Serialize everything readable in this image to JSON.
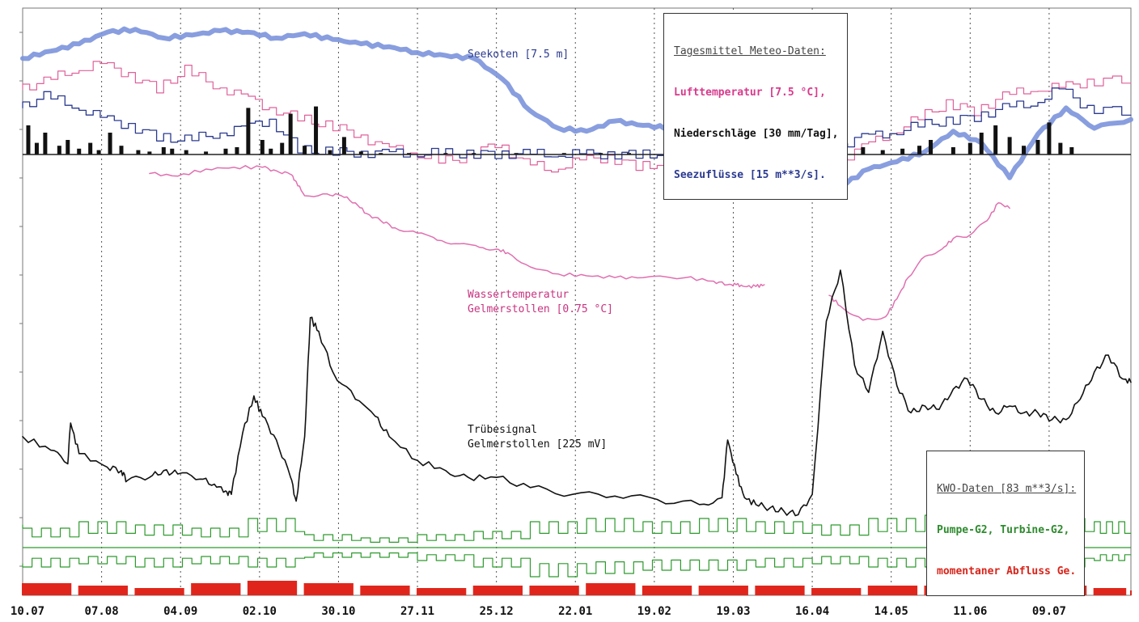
{
  "colors": {
    "air_temp": "#e0609a",
    "precip": "#111111",
    "inflow": "#2b3a8f",
    "lake_level": "#7b93dc",
    "water_temp": "#e070b0",
    "turbidity": "#111111",
    "pump_turbine": "#2e9a2e",
    "discharge": "#e0261c",
    "grid": "#555555"
  },
  "labels": {
    "seekoten": "Seekoten [7.5 m]",
    "wassertemp_1": "Wassertemperatur",
    "wassertemp_2": "Gelmerstollen [0.75 °C]",
    "truebe_1": "Trübesignal",
    "truebe_2": "Gelmerstollen [225 mV]"
  },
  "meteo_legend": {
    "title": "Tagesmittel Meteo-Daten:",
    "line1": "Lufttemperatur [7.5 °C],",
    "line2": "Niederschläge [30 mm/Tag],",
    "line3": "Seezuflüsse [15 m**3/s]."
  },
  "kwo_legend": {
    "title": "KWO-Daten [83 m**3/s]:",
    "line1": "Pumpe-G2, Turbine-G2,",
    "line2": "momentaner Abfluss Ge."
  },
  "chart_data": {
    "type": "line",
    "x_tick_labels": [
      "10.07",
      "07.08",
      "04.09",
      "02.10",
      "30.10",
      "27.11",
      "25.12",
      "22.01",
      "19.02",
      "19.03",
      "16.04",
      "14.05",
      "11.06",
      "09.07"
    ],
    "x_tick_days": [
      0,
      28,
      56,
      84,
      112,
      140,
      168,
      196,
      224,
      252,
      280,
      308,
      336,
      364
    ],
    "x_range_days": [
      0,
      393
    ],
    "grid": "vertical dotted at ticks",
    "series": [
      {
        "name": "Seekoten",
        "unit": "m",
        "scale": "7.5 m per division",
        "x": [
          0,
          10,
          20,
          30,
          40,
          50,
          60,
          70,
          80,
          90,
          100,
          110,
          120,
          130,
          140,
          150,
          160,
          170,
          180,
          190,
          200,
          210,
          220,
          230,
          240,
          250,
          260,
          270,
          280,
          290,
          300,
          310,
          320,
          330,
          340,
          350,
          360,
          370,
          380,
          393
        ],
        "y": [
          6.6,
          7.1,
          7.6,
          8.4,
          8.6,
          8.0,
          8.2,
          8.5,
          8.4,
          8.0,
          8.3,
          7.9,
          7.6,
          7.4,
          7.0,
          6.8,
          6.6,
          5.2,
          3.0,
          1.8,
          1.6,
          2.3,
          2.0,
          1.8,
          0.3,
          -0.8,
          -1.2,
          -0.5,
          -0.8,
          -2.2,
          -1.0,
          -0.5,
          0.2,
          1.6,
          0.8,
          -1.6,
          1.4,
          3.2,
          1.8,
          2.4
        ]
      },
      {
        "name": "Lufttemperatur",
        "unit": "°C",
        "scale": "7.5 °C per division",
        "x": [
          0,
          10,
          20,
          30,
          40,
          50,
          60,
          70,
          80,
          90,
          100,
          110,
          120,
          130,
          140,
          150,
          160,
          170,
          180,
          190,
          200,
          210,
          220,
          230,
          240,
          250,
          260,
          270,
          280,
          290,
          300,
          310,
          320,
          330,
          340,
          350,
          360,
          370,
          380,
          393
        ],
        "y": [
          4.5,
          5.0,
          5.8,
          6.2,
          5.5,
          4.5,
          5.8,
          4.8,
          4.0,
          3.2,
          2.5,
          2.0,
          1.5,
          0.5,
          0.2,
          -0.5,
          -0.2,
          0.8,
          -0.6,
          -1.0,
          -0.4,
          -0.2,
          -0.8,
          -0.6,
          -0.4,
          -0.6,
          -0.5,
          -0.4,
          -0.2,
          -0.6,
          0.5,
          1.5,
          2.5,
          3.5,
          3.0,
          4.0,
          4.5,
          4.6,
          5.0,
          5.2
        ]
      },
      {
        "name": "Seezuflüsse",
        "unit": "m**3/s",
        "scale": "15 m**3/s per division",
        "x": [
          0,
          10,
          20,
          30,
          40,
          50,
          60,
          70,
          80,
          90,
          100,
          110,
          120,
          130,
          140,
          150,
          160,
          170,
          180,
          190,
          200,
          210,
          220,
          230,
          240,
          250,
          260,
          270,
          280,
          290,
          300,
          310,
          320,
          330,
          340,
          350,
          360,
          370,
          380,
          393
        ],
        "y": [
          3.2,
          4.0,
          3.4,
          2.5,
          2.0,
          1.2,
          1.0,
          1.4,
          1.8,
          2.4,
          0.3,
          0.2,
          0.15,
          0.1,
          0.1,
          0.08,
          0.05,
          0.05,
          0.04,
          0.03,
          0.03,
          0.03,
          0.03,
          0.03,
          0.03,
          0.03,
          0.05,
          0.08,
          0.1,
          0.5,
          1.2,
          1.5,
          2.0,
          2.3,
          2.6,
          3.2,
          3.5,
          4.5,
          3.2,
          3.0
        ]
      },
      {
        "name": "Niederschläge",
        "unit": "mm/Tag",
        "scale": "30 mm/Tag per division",
        "type": "bar",
        "x": [
          2,
          5,
          8,
          13,
          16,
          20,
          24,
          27,
          31,
          35,
          41,
          45,
          50,
          53,
          58,
          65,
          72,
          76,
          80,
          85,
          88,
          92,
          95,
          100,
          104,
          109,
          114,
          120,
          127,
          137,
          150,
          160,
          175,
          192,
          205,
          215,
          230,
          240,
          250,
          255,
          268,
          280,
          290,
          298,
          305,
          312,
          318,
          322,
          330,
          336,
          340,
          345,
          350,
          355,
          360,
          364,
          368,
          372
        ],
        "y": [
          2.0,
          0.8,
          1.5,
          0.6,
          1.0,
          0.4,
          0.8,
          0.3,
          1.5,
          0.6,
          0.3,
          0.2,
          0.5,
          0.4,
          0.3,
          0.2,
          0.4,
          0.5,
          3.2,
          1.0,
          0.4,
          0.8,
          2.8,
          0.6,
          3.3,
          0.3,
          1.2,
          0.2,
          0.1,
          0.1,
          0.1,
          0.1,
          0.1,
          0.1,
          0.1,
          0.1,
          0.1,
          0.1,
          0.2,
          0.4,
          0.1,
          0.2,
          0.3,
          0.5,
          0.3,
          0.4,
          0.6,
          1.0,
          0.5,
          0.8,
          1.5,
          2.0,
          1.2,
          0.6,
          1.0,
          2.2,
          0.8,
          0.5
        ]
      },
      {
        "name": "Wassertemperatur Gelmerstollen",
        "unit": "°C",
        "scale": "0.75 °C per division",
        "x": [
          45,
          55,
          65,
          75,
          85,
          90,
          95,
          97,
          100,
          108,
          113,
          118,
          122,
          127,
          132,
          140,
          147,
          155,
          162,
          168,
          172,
          180,
          190,
          200,
          210,
          220,
          235,
          245,
          250,
          253,
          256,
          260,
          263,
          270,
          275,
          280,
          286,
          290,
          298,
          306,
          310,
          314,
          320,
          326,
          330,
          336,
          342,
          346,
          350
        ],
        "y": [
          5.25,
          5.1,
          5.5,
          5.6,
          5.6,
          5.4,
          5.2,
          4.8,
          4.0,
          4.1,
          4.0,
          3.6,
          3.0,
          2.6,
          2.2,
          1.9,
          1.5,
          1.3,
          1.1,
          1.0,
          0.8,
          0.0,
          -0.4,
          -0.5,
          -0.6,
          -0.6,
          -0.6,
          -0.8,
          -1.0,
          -1.0,
          -1.1,
          -1.1,
          -1.0,
          null,
          null,
          null,
          -1.6,
          -2.2,
          -3.0,
          -2.8,
          -1.8,
          -0.6,
          0.6,
          1.0,
          1.6,
          1.8,
          2.6,
          3.6,
          3.3
        ]
      },
      {
        "name": "Trübesignal Gelmerstollen",
        "unit": "mV",
        "scale": "225 mV per division",
        "x": [
          0,
          10,
          16,
          17,
          20,
          30,
          35,
          37,
          45,
          50,
          55,
          63,
          68,
          72,
          74,
          78,
          82,
          85,
          90,
          95,
          97,
          100,
          102,
          105,
          110,
          118,
          125,
          130,
          140,
          150,
          158,
          168,
          180,
          195,
          210,
          225,
          240,
          248,
          250,
          253,
          256,
          260,
          265,
          270,
          275,
          280,
          285,
          290,
          295,
          300,
          305,
          310,
          315,
          320,
          325,
          330,
          335,
          340,
          345,
          350,
          355,
          360,
          365,
          370,
          375,
          380,
          385,
          390,
          393
        ],
        "y": [
          -1.9,
          -2.3,
          -2.7,
          -1.5,
          -2.4,
          -2.8,
          -2.9,
          -3.2,
          -3.1,
          -2.9,
          -3.0,
          -3.15,
          -3.3,
          -3.5,
          -3.6,
          -1.8,
          -0.7,
          -1.3,
          -2.0,
          -3.1,
          -3.8,
          -1.9,
          1.6,
          1.2,
          0.0,
          -0.8,
          -1.3,
          -1.9,
          -2.6,
          -2.9,
          -3.1,
          -3.1,
          -3.4,
          -3.6,
          -3.65,
          -3.75,
          -3.9,
          -3.7,
          -2.0,
          -3.0,
          -3.7,
          -3.9,
          -4.0,
          -4.1,
          -4.2,
          -3.6,
          1.5,
          3.0,
          0.2,
          -0.6,
          1.2,
          -0.4,
          -1.2,
          -1.0,
          -1.1,
          -0.5,
          -0.2,
          -0.8,
          -1.2,
          -1.0,
          -1.2,
          -1.2,
          -1.4,
          -1.4,
          -0.8,
          0.0,
          0.5,
          -0.2,
          -0.3
        ]
      },
      {
        "name": "Pumpe-G2",
        "unit": "m**3/s",
        "scale": "83 m**3/s per division",
        "x": [
          0,
          20,
          40,
          60,
          80,
          100,
          120,
          140,
          160,
          180,
          200,
          220,
          240,
          260,
          280,
          300,
          320,
          340,
          360,
          380,
          393
        ],
        "y": [
          0.7,
          0.6,
          0.8,
          0.7,
          0.6,
          0.9,
          0.4,
          0.3,
          0.4,
          0.5,
          0.8,
          0.9,
          0.8,
          0.9,
          0.8,
          0.7,
          0.9,
          1.0,
          0.8,
          0.9,
          0.8
        ]
      },
      {
        "name": "Turbine-G2",
        "unit": "m**3/s",
        "scale": "83 m**3/s per division",
        "x": [
          0,
          20,
          40,
          60,
          80,
          100,
          120,
          140,
          160,
          180,
          200,
          220,
          240,
          260,
          280,
          300,
          320,
          340,
          360,
          380,
          393
        ],
        "y": [
          -0.5,
          -0.6,
          -0.5,
          -0.6,
          -0.5,
          -0.6,
          -0.3,
          -0.3,
          -0.4,
          -0.6,
          -0.9,
          -0.8,
          -0.7,
          -0.7,
          -0.6,
          -0.5,
          -0.6,
          -0.6,
          -0.5,
          -0.6,
          -0.4
        ]
      },
      {
        "name": "momentaner Abfluss Ge.",
        "unit": "m**3/s",
        "scale": "83 m**3/s per division",
        "type": "bar",
        "x": [
          0,
          20,
          40,
          60,
          80,
          100,
          120,
          140,
          160,
          180,
          200,
          220,
          240,
          260,
          280,
          300,
          320,
          340,
          360,
          380,
          393
        ],
        "y": [
          0.25,
          0.2,
          0.15,
          0.25,
          0.3,
          0.25,
          0.2,
          0.15,
          0.2,
          0.2,
          0.25,
          0.2,
          0.2,
          0.2,
          0.15,
          0.2,
          0.2,
          0.25,
          0.2,
          0.15,
          0.1
        ]
      }
    ]
  }
}
